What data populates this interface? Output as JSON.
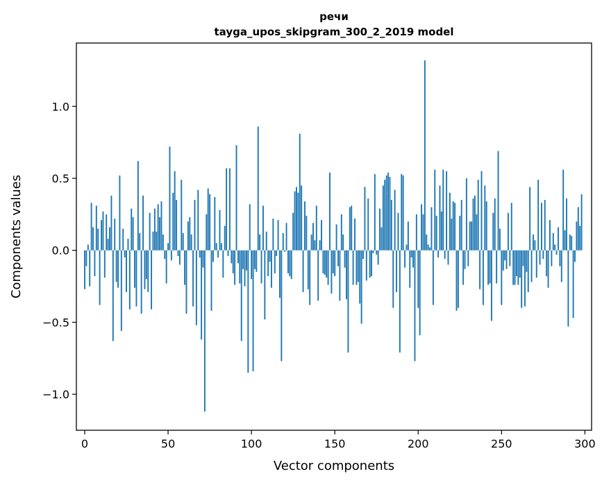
{
  "chart_data": {
    "type": "bar",
    "title": "речи",
    "subtitle": "tayga_upos_skipgram_300_2_2019 model",
    "xlabel": "Vector components",
    "ylabel": "Components values",
    "xlim": [
      -5,
      304
    ],
    "ylim": [
      -1.25,
      1.44
    ],
    "xticks": [
      0,
      50,
      100,
      150,
      200,
      250,
      300
    ],
    "yticks": [
      -1.0,
      -0.5,
      0.0,
      0.5,
      1.0
    ],
    "ytick_labels": [
      "−1.0",
      "−0.5",
      "0.0",
      "0.5",
      "1.0"
    ],
    "bar_color": "#1f77b4",
    "series": [
      {
        "name": "components",
        "values": [
          -0.27,
          -0.11,
          0.04,
          -0.25,
          0.33,
          0.16,
          -0.18,
          0.31,
          0.15,
          -0.38,
          0.21,
          0.27,
          -0.19,
          0.25,
          0.08,
          0.16,
          0.38,
          -0.63,
          0.22,
          -0.22,
          -0.26,
          0.52,
          -0.56,
          0.15,
          -0.05,
          -0.29,
          0.08,
          -0.41,
          0.29,
          0.23,
          -0.26,
          -0.39,
          0.62,
          0.12,
          -0.44,
          0.38,
          -0.27,
          -0.2,
          -0.29,
          0.26,
          -0.41,
          0.13,
          0.29,
          0.13,
          0.32,
          0.23,
          0.34,
          0.11,
          -0.06,
          -0.23,
          0.05,
          0.72,
          -0.07,
          0.4,
          0.55,
          0.35,
          -0.04,
          -0.1,
          0.49,
          0.12,
          -0.24,
          -0.44,
          0.2,
          0.23,
          0.11,
          -0.39,
          0.35,
          -0.52,
          0.42,
          -0.05,
          -0.62,
          -0.12,
          -1.12,
          0.25,
          0.43,
          0.39,
          -0.42,
          -0.08,
          0.37,
          0.05,
          -0.05,
          0.28,
          0.05,
          -0.19,
          0.17,
          0.57,
          -0.04,
          0.57,
          -0.09,
          -0.16,
          -0.24,
          0.73,
          -0.09,
          -0.23,
          -0.63,
          -0.13,
          -0.25,
          -0.14,
          -0.85,
          0.32,
          -0.2,
          -0.84,
          -0.13,
          -0.15,
          0.86,
          0.11,
          -0.23,
          0.31,
          -0.48,
          0.13,
          -0.18,
          -0.08,
          -0.26,
          0.22,
          -0.16,
          -0.04,
          0.21,
          -0.33,
          -0.77,
          0.12,
          -0.01,
          0.19,
          -0.16,
          -0.18,
          -0.2,
          0.26,
          0.41,
          0.44,
          0.4,
          0.81,
          0.45,
          -0.29,
          0.34,
          0.24,
          -0.27,
          -0.38,
          0.11,
          0.19,
          0.07,
          0.31,
          -0.35,
          0.07,
          0.21,
          -0.16,
          -0.17,
          -0.19,
          -0.24,
          0.54,
          -0.3,
          -0.16,
          -0.18,
          0.18,
          -0.11,
          -0.35,
          0.25,
          0.11,
          -0.12,
          -0.34,
          -0.71,
          0.3,
          0.31,
          -0.24,
          0.22,
          -0.24,
          -0.22,
          -0.37,
          -0.51,
          -0.06,
          0.44,
          -0.21,
          0.36,
          -0.19,
          -0.18,
          -0.02,
          0.53,
          -0.03,
          -0.1,
          0.29,
          0.16,
          0.45,
          0.49,
          0.52,
          0.54,
          0.51,
          0.35,
          -0.4,
          0.42,
          -0.29,
          0.26,
          -0.71,
          0.53,
          0.52,
          -0.12,
          0.04,
          0.2,
          -0.26,
          -0.05,
          -0.12,
          -0.77,
          0.25,
          -0.4,
          -0.59,
          0.32,
          0.25,
          1.32,
          0.11,
          0.04,
          0.02,
          0.3,
          -0.38,
          0.56,
          0.24,
          -0.05,
          0.45,
          0.27,
          0.56,
          -0.06,
          0.55,
          -0.1,
          0.4,
          0.22,
          0.34,
          0.33,
          -0.42,
          -0.4,
          0.24,
          0.35,
          -0.24,
          -0.13,
          0.5,
          -0.11,
          0.2,
          0.2,
          0.36,
          0.38,
          0.25,
          0.49,
          -0.27,
          0.55,
          -0.38,
          0.45,
          0.34,
          -0.24,
          -0.23,
          -0.49,
          0.26,
          0.36,
          -0.23,
          0.69,
          0.15,
          -0.38,
          -0.14,
          -0.07,
          -0.13,
          0.26,
          -0.11,
          0.33,
          -0.24,
          -0.24,
          -0.18,
          -0.24,
          -0.19,
          -0.4,
          -0.11,
          -0.39,
          -0.15,
          -0.29,
          0.44,
          -0.22,
          0.11,
          0.07,
          -0.19,
          0.49,
          -0.1,
          0.33,
          -0.06,
          0.35,
          -0.18,
          -0.26,
          0.21,
          -0.11,
          0.12,
          0.04,
          -0.03,
          0.16,
          -0.11,
          -0.22,
          0.56,
          0.14,
          0.36,
          -0.53,
          0.11,
          0.1,
          -0.47,
          -0.08,
          0.2,
          0.3,
          0.17,
          0.39
        ]
      }
    ]
  }
}
